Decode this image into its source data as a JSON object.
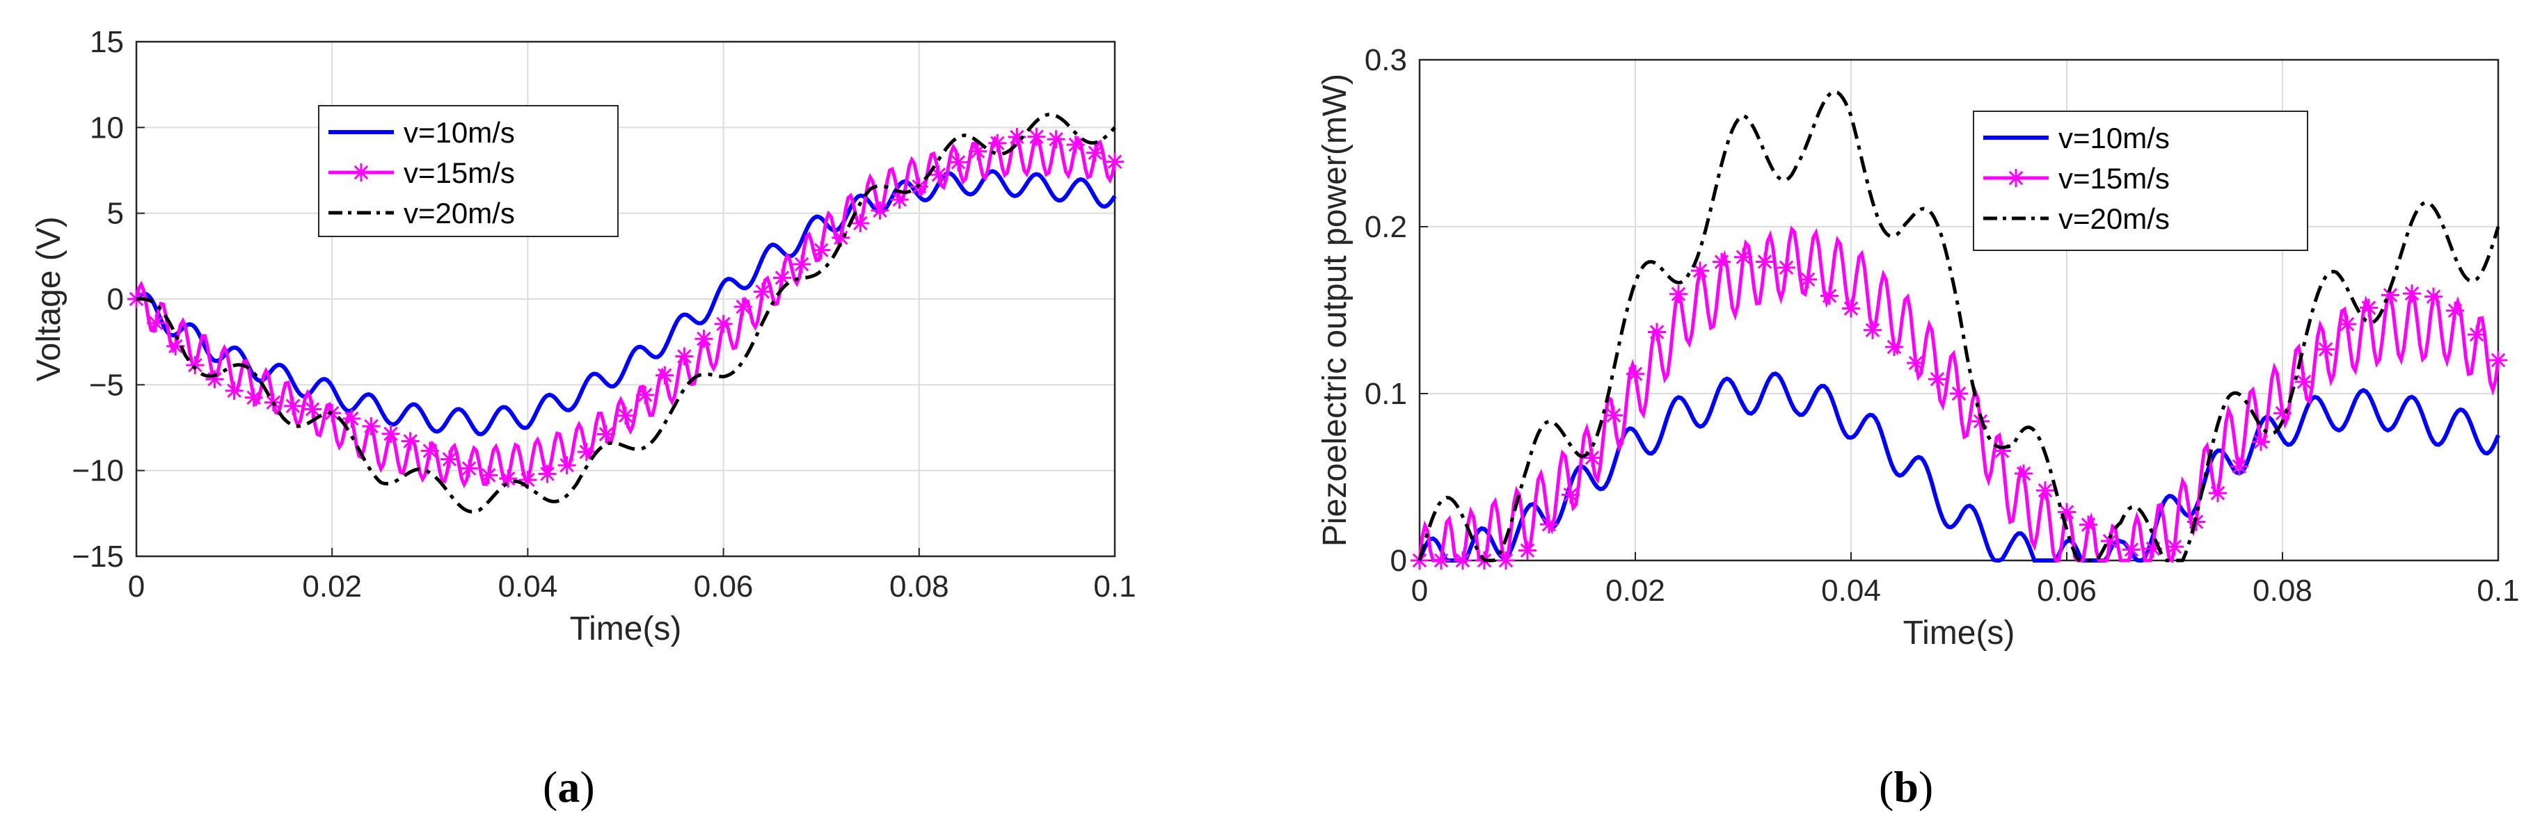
{
  "panel_labels": {
    "a": "a",
    "b": "b"
  },
  "chart_data": [
    {
      "type": "line",
      "id": "a",
      "xlabel": "Time(s)",
      "ylabel": "Voltage (V)",
      "xlim": [
        0,
        0.1
      ],
      "ylim": [
        -15,
        15
      ],
      "xticks": [
        "0",
        "0.02",
        "0.04",
        "0.06",
        "0.08",
        "0.1"
      ],
      "yticks": [
        "-15",
        "-10",
        "-5",
        "0",
        "5",
        "10",
        "15"
      ],
      "grid": true,
      "legend_position": "top-left",
      "series": [
        {
          "name": "v=10m/s",
          "color": "#0000ff",
          "style": "solid",
          "x": [
            0,
            0.005,
            0.01,
            0.015,
            0.02,
            0.025,
            0.03,
            0.035,
            0.04,
            0.045,
            0.05,
            0.055,
            0.06,
            0.065,
            0.07,
            0.075,
            0.08,
            0.085,
            0.09,
            0.095,
            0.1
          ],
          "y": [
            0,
            -2.0,
            -3.5,
            -4.6,
            -5.5,
            -6.5,
            -7.0,
            -7.2,
            -6.8,
            -5.6,
            -4.0,
            -2.0,
            0.3,
            2.5,
            4.3,
            5.6,
            6.4,
            6.8,
            6.7,
            6.4,
            6.0
          ]
        },
        {
          "name": "v=15m/s",
          "color": "#ff00ff",
          "style": "solid-star",
          "x": [
            0,
            0.005,
            0.01,
            0.015,
            0.02,
            0.025,
            0.03,
            0.035,
            0.04,
            0.045,
            0.05,
            0.055,
            0.06,
            0.065,
            0.07,
            0.075,
            0.08,
            0.085,
            0.09,
            0.095,
            0.1
          ],
          "y": [
            0,
            -2.5,
            -4.3,
            -5.8,
            -7.3,
            -8.8,
            -9.5,
            -9.8,
            -9.5,
            -8.5,
            -6.8,
            -4.8,
            -2.5,
            0.5,
            3.5,
            6.0,
            7.2,
            8.0,
            8.4,
            8.3,
            8.0
          ]
        },
        {
          "name": "v=20m/s",
          "color": "#000000",
          "style": "dashdot",
          "x": [
            0,
            0.005,
            0.01,
            0.015,
            0.02,
            0.025,
            0.03,
            0.035,
            0.04,
            0.045,
            0.05,
            0.055,
            0.06,
            0.065,
            0.07,
            0.075,
            0.08,
            0.085,
            0.09,
            0.095,
            0.1
          ],
          "y": [
            0,
            -3.0,
            -4.4,
            -6.2,
            -7.5,
            -9.8,
            -11.0,
            -11.6,
            -11.5,
            -10.5,
            -8.6,
            -6.5,
            -4.0,
            -1.0,
            2.5,
            5.5,
            7.5,
            8.8,
            9.6,
            10.0,
            10.0
          ]
        }
      ]
    },
    {
      "type": "line",
      "id": "b",
      "xlabel": "Time(s)",
      "ylabel": "Piezoelectric output power(mW)",
      "xlim": [
        0,
        0.1
      ],
      "ylim": [
        0,
        0.3
      ],
      "xticks": [
        "0",
        "0.02",
        "0.04",
        "0.06",
        "0.08",
        "0.1"
      ],
      "yticks": [
        "0",
        "0.1",
        "0.2",
        "0.3"
      ],
      "grid": true,
      "legend_position": "top-right",
      "series": [
        {
          "name": "v=10m/s",
          "color": "#0000ff",
          "style": "solid",
          "x": [
            0,
            0.005,
            0.01,
            0.015,
            0.02,
            0.025,
            0.03,
            0.035,
            0.04,
            0.045,
            0.05,
            0.055,
            0.06,
            0.065,
            0.07,
            0.075,
            0.08,
            0.085,
            0.09,
            0.095,
            0.1
          ],
          "y": [
            0,
            0.005,
            0.02,
            0.045,
            0.07,
            0.09,
            0.1,
            0.1,
            0.085,
            0.06,
            0.025,
            0.005,
            0.0,
            0.0,
            0.03,
            0.06,
            0.08,
            0.09,
            0.09,
            0.08,
            0.075
          ]
        },
        {
          "name": "v=15m/s",
          "color": "#ff00ff",
          "style": "solid-star",
          "x": [
            0,
            0.005,
            0.01,
            0.015,
            0.02,
            0.025,
            0.03,
            0.035,
            0.04,
            0.045,
            0.05,
            0.055,
            0.06,
            0.065,
            0.07,
            0.075,
            0.08,
            0.085,
            0.09,
            0.095,
            0.1
          ],
          "y": [
            0,
            0.01,
            0.025,
            0.055,
            0.1,
            0.15,
            0.17,
            0.18,
            0.17,
            0.14,
            0.1,
            0.04,
            0.01,
            0.0,
            0.02,
            0.07,
            0.1,
            0.13,
            0.14,
            0.14,
            0.12
          ]
        },
        {
          "name": "v=20m/s",
          "color": "#000000",
          "style": "dashdot",
          "x": [
            0,
            0.005,
            0.01,
            0.015,
            0.02,
            0.025,
            0.03,
            0.035,
            0.04,
            0.045,
            0.05,
            0.055,
            0.06,
            0.065,
            0.07,
            0.075,
            0.08,
            0.085,
            0.09,
            0.095,
            0.1
          ],
          "y": [
            0,
            0.02,
            0.04,
            0.085,
            0.14,
            0.2,
            0.24,
            0.26,
            0.25,
            0.21,
            0.15,
            0.06,
            0.035,
            0.0,
            0.02,
            0.07,
            0.11,
            0.15,
            0.18,
            0.19,
            0.2
          ]
        }
      ]
    }
  ]
}
